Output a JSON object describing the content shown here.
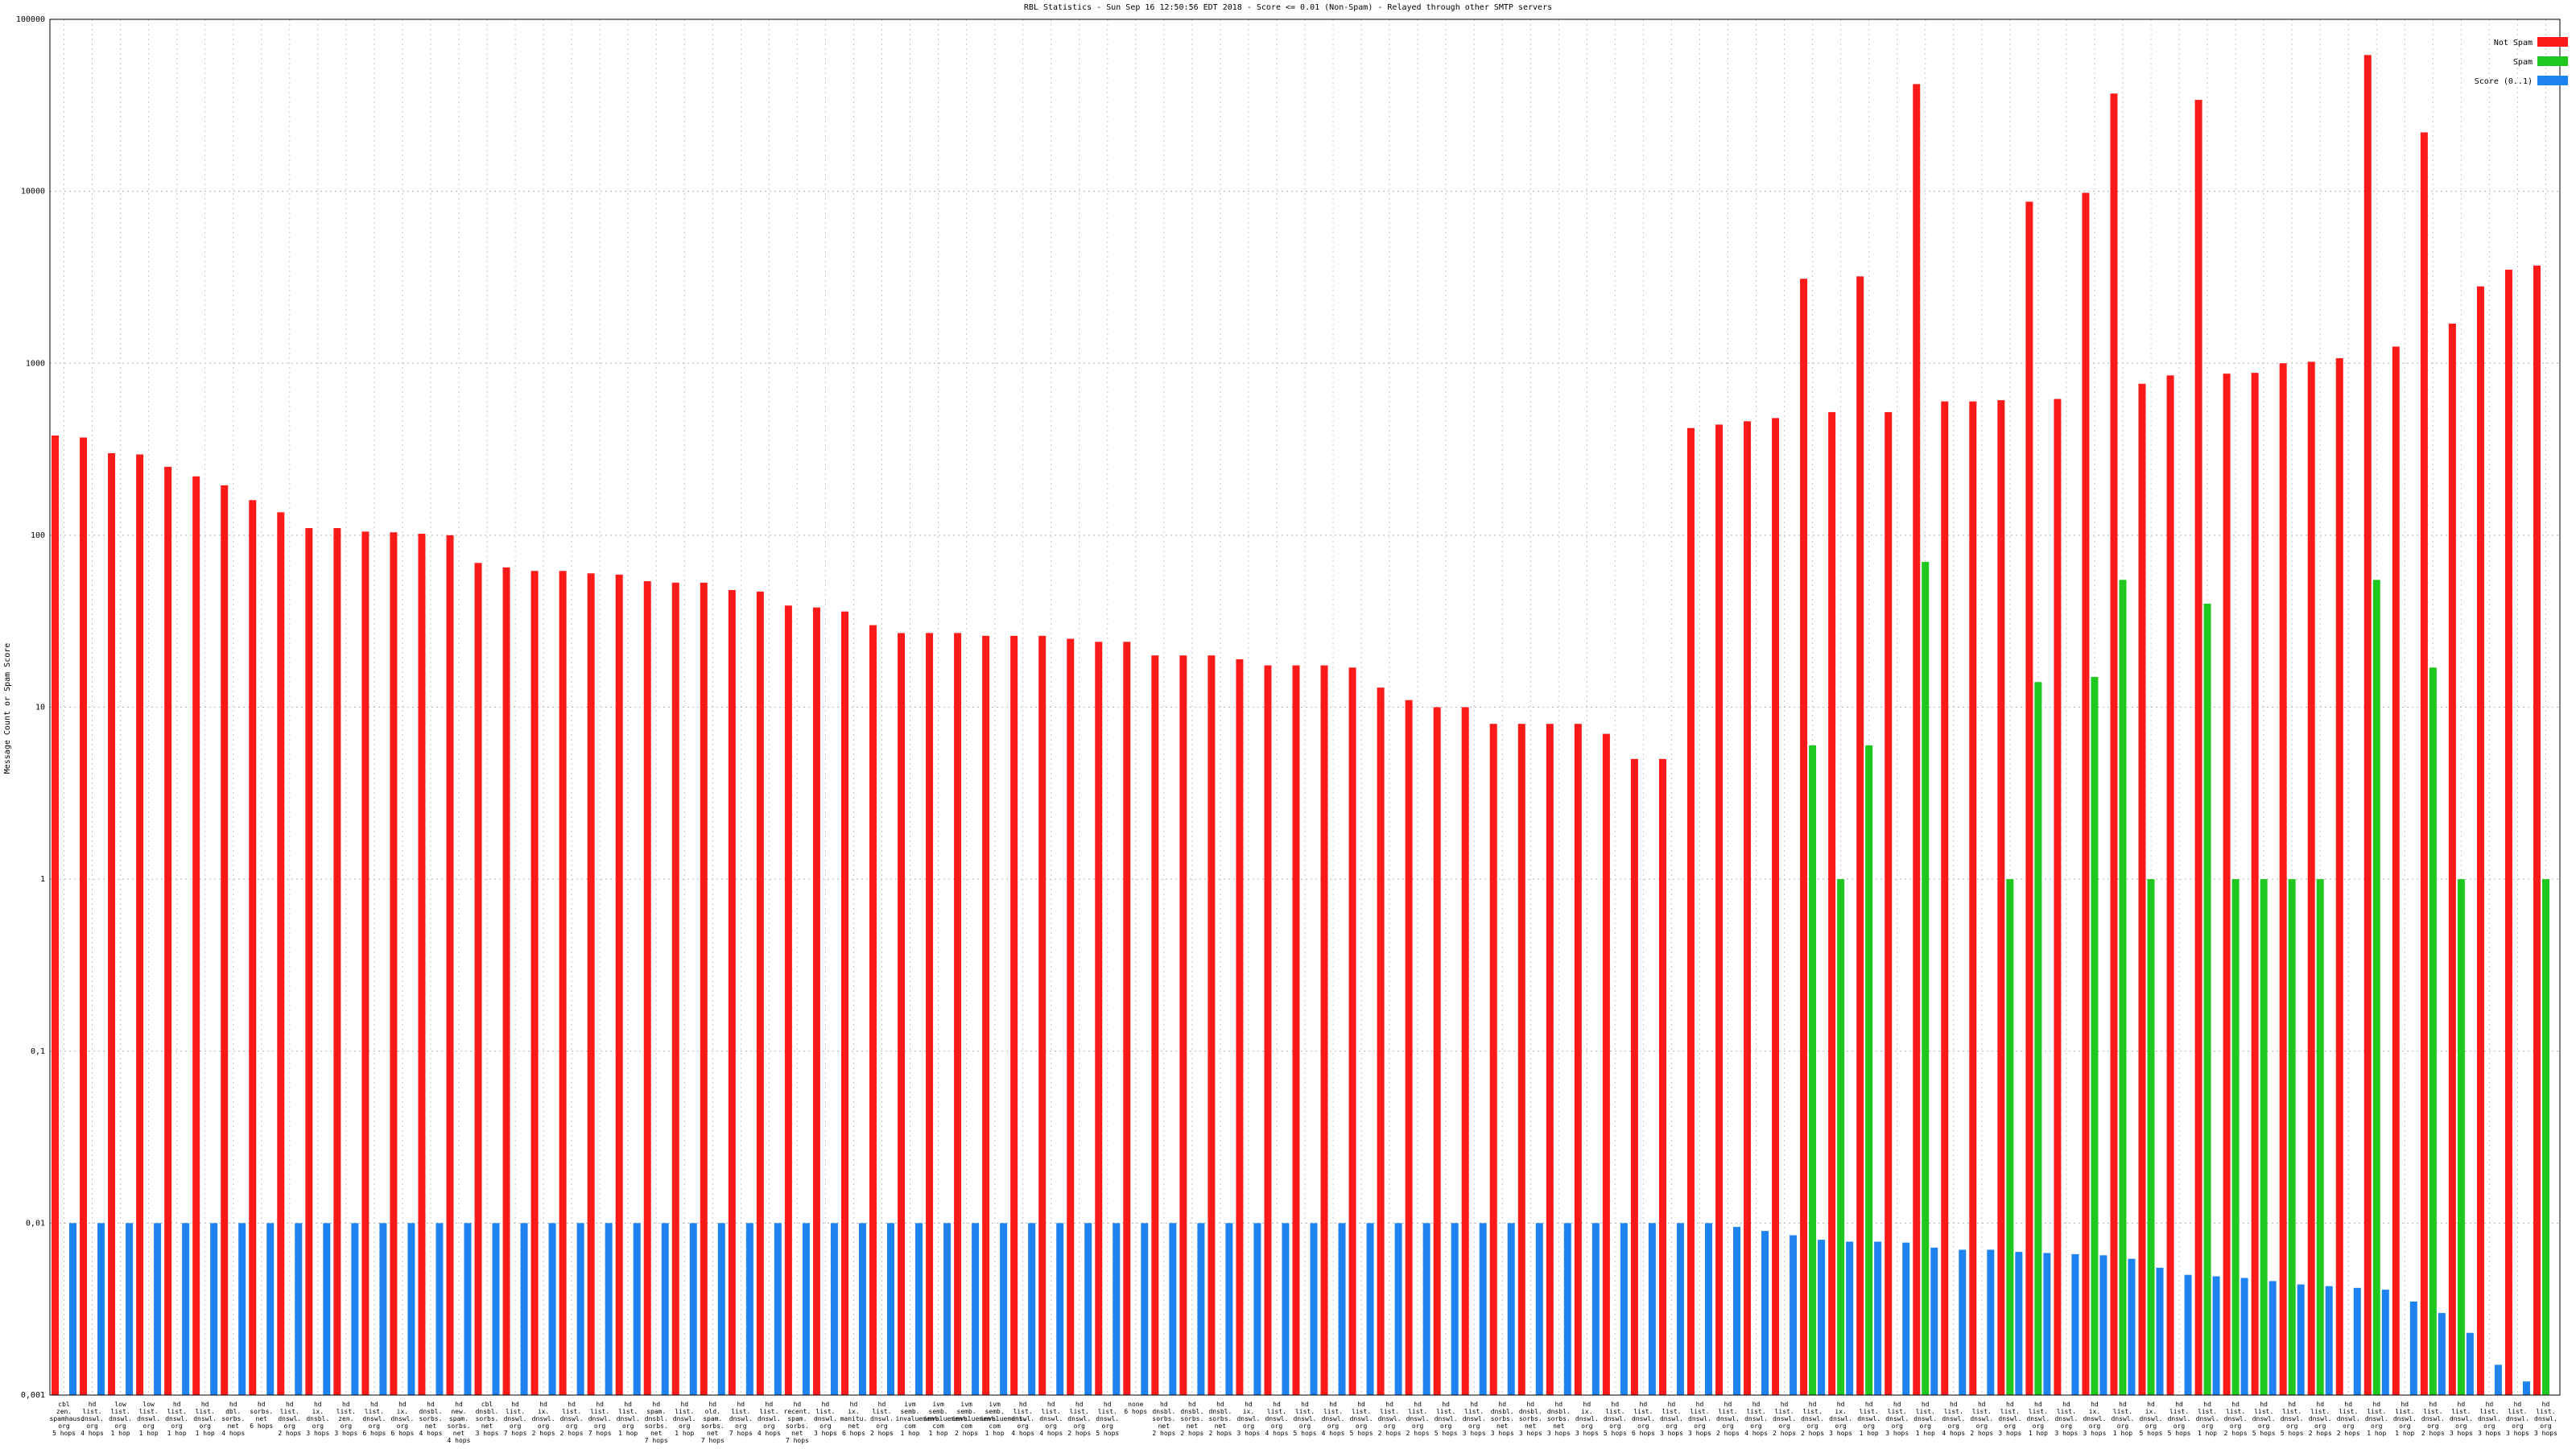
{
  "chart_data": {
    "type": "bar",
    "log_scale": true,
    "grid": true,
    "legend": "top-right",
    "title": "RBL Statistics - Sun Sep 16 12:50:56 EDT 2018 - Score <= 0.01 (Non-Spam) - Relayed through other SMTP servers",
    "ylabel": "Message Count or Spam Score",
    "ylim": [
      0.001,
      100000
    ],
    "yticks": [
      {
        "value": 0.001,
        "label": "0,001"
      },
      {
        "value": 0.01,
        "label": "0,01"
      },
      {
        "value": 0.1,
        "label": "0,1"
      },
      1,
      10,
      100,
      1000,
      10000,
      100000
    ],
    "categories": [
      "cbl\nzen.\nspamhaus.\norg\n5 hops",
      "hd\nlist.\ndnswl.\norg\n4 hops",
      "low\nlist.\ndnswl.\norg\n1 hop",
      "low\nlist.\ndnswl.\norg\n1 hop",
      "hd\nlist.\ndnswl.\norg\n1 hop",
      "hd\nlist.\ndnswl.\norg\n1 hop",
      "hd\ndbl.\nsorbs.\nnet\n4 hops",
      "hd\nsorbs.\nnet\n6 hops",
      "hd\nlist.\ndnswl.\norg\n2 hops",
      "hd\nix.\ndnsbl.\norg\n3 hops",
      "hd\nlist.\nzen.\norg\n3 hops",
      "hd\nlist.\ndnswl.\norg\n6 hops",
      "hd\nix.\ndnswl.\norg\n6 hops",
      "hd\ndnsbl.\nsorbs.\nnet\n4 hops",
      "hd\nnew.\nspam.\nsorbs.\nnet\n4 hops",
      "cbl\ndnsbl.\nsorbs.\nnet\n3 hops",
      "hd\nlist.\ndnswl.\norg\n7 hops",
      "hd\nix.\ndnswl.\norg\n2 hops",
      "hd\nlist.\ndnswl.\norg\n2 hops",
      "hd\nlist.\ndnswl.\norg\n7 hops",
      "hd\nlist.\ndnswl.\norg\n1 hop",
      "hd\nspam.\ndnsbl.\nsorbs.\nnet\n7 hops",
      "hd\nlist.\ndnswl.\norg\n1 hop",
      "hd\nold.\nspam.\nsorbs.\nnet\n7 hops",
      "hd\nlist.\ndnswl.\norg\n7 hops",
      "hd\nlist.\ndnswl.\norg\n4 hops",
      "hd\nrecent.\nspam.\nsorbs.\nnet\n7 hops",
      "hd\nlist.\ndnswl.\norg\n3 hops",
      "hd\nix.\nmanitu.\nnet\n6 hops",
      "hd\nlist.\ndnswl.\norg\n2 hops",
      "ivm\nsemb.\ninvaluement.\ncom\n1 hop",
      "ivm\nsemb.\ninvaluement.\ncom\n1 hop",
      "ivm\nsemb.\ninvaluement.\ncom\n2 hops",
      "ivm\nsemb.\ninvaluement.\ncom\n1 hop",
      "hd\nlist.\ndnswl.\norg\n4 hops",
      "hd\nlist.\ndnswl.\norg\n4 hops",
      "hd\nlist.\ndnswl.\norg\n2 hops",
      "hd\nlist.\ndnswl.\norg\n5 hops",
      "none\n6 hops",
      "hd\ndnsbl.\nsorbs.\nnet\n2 hops",
      "hd\ndnsbl.\nsorbs.\nnet\n2 hops",
      "hd\ndnsbl.\nsorbs.\nnet\n2 hops",
      "hd\nix.\ndnswl.\norg\n3 hops",
      "hd\nlist.\ndnswl.\norg\n4 hops",
      "hd\nlist.\ndnswl.\norg\n5 hops",
      "hd\nlist.\ndnswl.\norg\n4 hops",
      "hd\nlist.\ndnswl.\norg\n5 hops",
      "hd\nlist.\ndnswl.\norg\n2 hops",
      "hd\nlist.\ndnswl.\norg\n2 hops",
      "hd\nlist.\ndnswl.\norg\n5 hops",
      "hd\nlist.\ndnswl.\norg\n3 hops",
      "hd\ndnsbl.\nsorbs.\nnet\n3 hops",
      "hd\ndnsbl.\nsorbs.\nnet\n3 hops",
      "hd\ndnsbl.\nsorbs.\nnet\n3 hops",
      "hd\nix.\ndnswl.\norg\n3 hops",
      "hd\nlist.\ndnswl.\norg\n5 hops",
      "hd\nlist.\ndnswl.\norg\n6 hops",
      "hd\nlist.\ndnswl.\norg\n3 hops",
      "hd\nlist.\ndnswl.\norg\n3 hops",
      "hd\nlist.\ndnswl.\norg\n2 hops",
      "hd\nlist.\ndnswl.\norg\n4 hops",
      "hd\nlist.\ndnswl.\norg\n2 hops",
      "hd\nlist.\ndnswl.\norg\n2 hops",
      "hd\nix.\ndnswl.\norg\n3 hops",
      "hd\nlist.\ndnswl.\norg\n1 hop",
      "hd\nlist.\ndnswl.\norg\n3 hops",
      "hd\nlist.\ndnswl.\norg\n1 hop",
      "hd\nlist.\ndnswl.\norg\n4 hops",
      "hd\nlist.\ndnswl.\norg\n2 hops",
      "hd\nlist.\ndnswl.\norg\n3 hops",
      "hd\nlist.\ndnswl.\norg\n1 hop",
      "hd\nlist.\ndnswl.\norg\n3 hops",
      "hd\nix.\ndnswl.\norg\n3 hops",
      "hd\nlist.\ndnswl.\norg\n1 hop",
      "hd\nix.\ndnswl.\norg\n5 hops",
      "hd\nlist.\ndnswl.\norg\n5 hops",
      "hd\nlist.\ndnswl.\norg\n1 hop",
      "hd\nlist.\ndnswl.\norg\n2 hops",
      "hd\nlist.\ndnswl.\norg\n5 hops",
      "hd\nlist.\ndnswl.\norg\n5 hops",
      "hd\nlist.\ndnswl.\norg\n2 hops",
      "hd\nlist.\ndnswl.\norg\n2 hops",
      "hd\nlist.\ndnswl.\norg\n1 hop",
      "hd\nlist.\ndnswl.\norg\n1 hop",
      "hd\nlist.\ndnswl.\norg\n2 hops",
      "hd\nlist.\ndnswl.\norg\n3 hops",
      "hd\nlist.\ndnswl.\norg\n3 hops",
      "hd\nlist.\ndnswl.\norg\n3 hops",
      "hd\nlist.\ndnswl.\norg\n3 hops"
    ],
    "series": [
      {
        "name": "Not Spam",
        "color": "#ff1a1a",
        "values": [
          380,
          370,
          300,
          295,
          250,
          220,
          195,
          160,
          136,
          110,
          110,
          105,
          104,
          102,
          100,
          69,
          65,
          62,
          62,
          60,
          59,
          54,
          53,
          53,
          48,
          47,
          39,
          38,
          36,
          30,
          27,
          27,
          27,
          26,
          26,
          26,
          25,
          24,
          24,
          20,
          20,
          20,
          19,
          17.5,
          17.5,
          17.5,
          17,
          13,
          11,
          10,
          10,
          8,
          8,
          8,
          8,
          7,
          5,
          5,
          420,
          440,
          460,
          480,
          3100,
          520,
          3200,
          520,
          42000,
          600,
          600,
          610,
          8700,
          620,
          9800,
          37000,
          760,
          850,
          34000,
          870,
          880,
          1000,
          1020,
          1070,
          62000,
          1250,
          22000,
          1700,
          2800,
          3500,
          3700
        ]
      },
      {
        "name": "Spam",
        "color": "#1ec81e",
        "values": [
          null,
          null,
          null,
          null,
          null,
          null,
          null,
          null,
          null,
          null,
          null,
          null,
          null,
          null,
          null,
          null,
          null,
          null,
          null,
          null,
          null,
          null,
          null,
          null,
          null,
          null,
          null,
          null,
          null,
          null,
          null,
          null,
          null,
          null,
          null,
          null,
          null,
          null,
          null,
          null,
          null,
          null,
          null,
          null,
          null,
          null,
          null,
          null,
          null,
          null,
          null,
          null,
          null,
          null,
          null,
          null,
          null,
          null,
          null,
          null,
          null,
          null,
          6,
          1,
          6,
          null,
          70,
          null,
          null,
          1,
          14,
          null,
          15,
          55,
          1,
          null,
          40,
          1,
          1,
          1,
          1,
          null,
          55,
          null,
          17,
          1,
          null,
          null,
          1
        ]
      },
      {
        "name": "Score (0..1)",
        "color": "#1e82f0",
        "values": [
          0.01,
          0.01,
          0.01,
          0.01,
          0.01,
          0.01,
          0.01,
          0.01,
          0.01,
          0.01,
          0.01,
          0.01,
          0.01,
          0.01,
          0.01,
          0.01,
          0.01,
          0.01,
          0.01,
          0.01,
          0.01,
          0.01,
          0.01,
          0.01,
          0.01,
          0.01,
          0.01,
          0.01,
          0.01,
          0.01,
          0.01,
          0.01,
          0.01,
          0.01,
          0.01,
          0.01,
          0.01,
          0.01,
          0.01,
          0.01,
          0.01,
          0.01,
          0.01,
          0.01,
          0.01,
          0.01,
          0.01,
          0.01,
          0.01,
          0.01,
          0.01,
          0.01,
          0.01,
          0.01,
          0.01,
          0.01,
          0.01,
          0.01,
          0.01,
          0.0095,
          0.009,
          0.0085,
          0.008,
          0.0078,
          0.0078,
          0.0077,
          0.0072,
          0.007,
          0.007,
          0.0068,
          0.0067,
          0.0066,
          0.0065,
          0.0062,
          0.0055,
          0.005,
          0.0049,
          0.0048,
          0.0046,
          0.0044,
          0.0043,
          0.0042,
          0.0041,
          0.0035,
          0.003,
          0.0023,
          0.0015,
          0.0012,
          0.001
        ]
      }
    ]
  }
}
